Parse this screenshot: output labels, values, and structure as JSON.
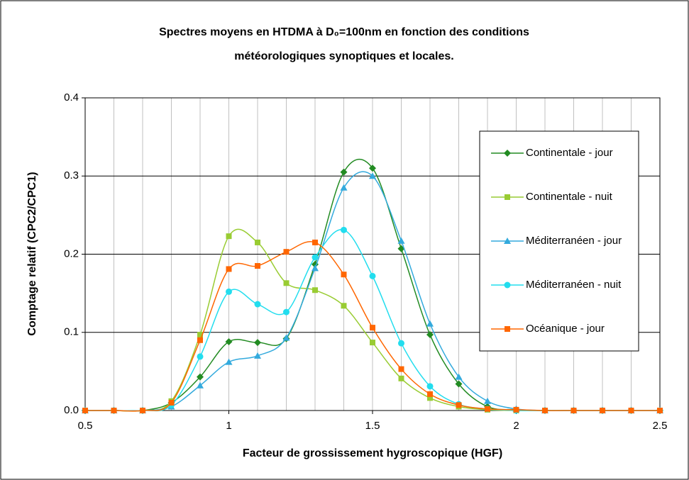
{
  "chart_data": {
    "type": "line",
    "title": [
      "Spectres moyens en HTDMA à D₀=100nm en fonction des conditions",
      "météorologiques synoptiques et locales."
    ],
    "x_label": "Facteur de grossissement hygroscopique (HGF)",
    "y_label": "Comptage relatif (CPC2/CPC1)",
    "x": [
      0.5,
      0.6,
      0.7,
      0.8,
      0.9,
      1.0,
      1.1,
      1.2,
      1.3,
      1.4,
      1.5,
      1.6,
      1.7,
      1.8,
      1.9,
      2.0,
      2.1,
      2.2,
      2.3,
      2.4,
      2.5
    ],
    "xlim": [
      0.5,
      2.5
    ],
    "xticks": [
      0.5,
      1,
      1.5,
      2,
      2.5
    ],
    "xgrid": [
      0.5,
      0.6,
      0.7,
      0.8,
      0.9,
      1.0,
      1.1,
      1.2,
      1.3,
      1.4,
      1.5,
      1.6,
      1.7,
      1.8,
      1.9,
      2.0,
      2.1,
      2.2,
      2.3,
      2.4,
      2.5
    ],
    "ylim": [
      0,
      0.4
    ],
    "yticks": [
      {
        "value": 0,
        "label": "0.0"
      },
      0.1,
      0.2,
      0.3,
      0.4
    ],
    "grid": true,
    "smooth": true,
    "legend": "right",
    "series": [
      {
        "name": "Continentale - jour",
        "color": "#228b22",
        "marker": "diamond",
        "values": [
          0,
          0,
          0,
          0.01,
          0.043,
          0.088,
          0.087,
          0.092,
          0.187,
          0.305,
          0.31,
          0.207,
          0.097,
          0.034,
          0.005,
          0.001,
          0,
          0,
          0,
          0,
          0
        ]
      },
      {
        "name": "Continentale - nuit",
        "color": "#99cc33",
        "marker": "square",
        "values": [
          0,
          0,
          0,
          0.012,
          0.097,
          0.223,
          0.215,
          0.163,
          0.154,
          0.134,
          0.087,
          0.041,
          0.016,
          0.005,
          0.001,
          0,
          0,
          0,
          0,
          0,
          0
        ]
      },
      {
        "name": "Méditerranéen - jour",
        "color": "#33aadd",
        "marker": "triangle",
        "values": [
          0,
          0,
          0,
          0.005,
          0.032,
          0.062,
          0.07,
          0.093,
          0.182,
          0.285,
          0.3,
          0.217,
          0.111,
          0.043,
          0.012,
          0.002,
          0,
          0,
          0,
          0,
          0
        ]
      },
      {
        "name": "Méditerranéen - nuit",
        "color": "#22ddee",
        "marker": "circle",
        "values": [
          0,
          0,
          0,
          0.007,
          0.069,
          0.152,
          0.136,
          0.126,
          0.196,
          0.231,
          0.172,
          0.086,
          0.031,
          0.008,
          0.002,
          0,
          0,
          0,
          0,
          0,
          0
        ]
      },
      {
        "name": "Océanique - jour",
        "color": "#ff6600",
        "marker": "square",
        "values": [
          0,
          0,
          0,
          0.01,
          0.09,
          0.181,
          0.185,
          0.203,
          0.215,
          0.174,
          0.106,
          0.053,
          0.021,
          0.007,
          0.002,
          0.001,
          0,
          0,
          0,
          0,
          0
        ]
      }
    ]
  }
}
